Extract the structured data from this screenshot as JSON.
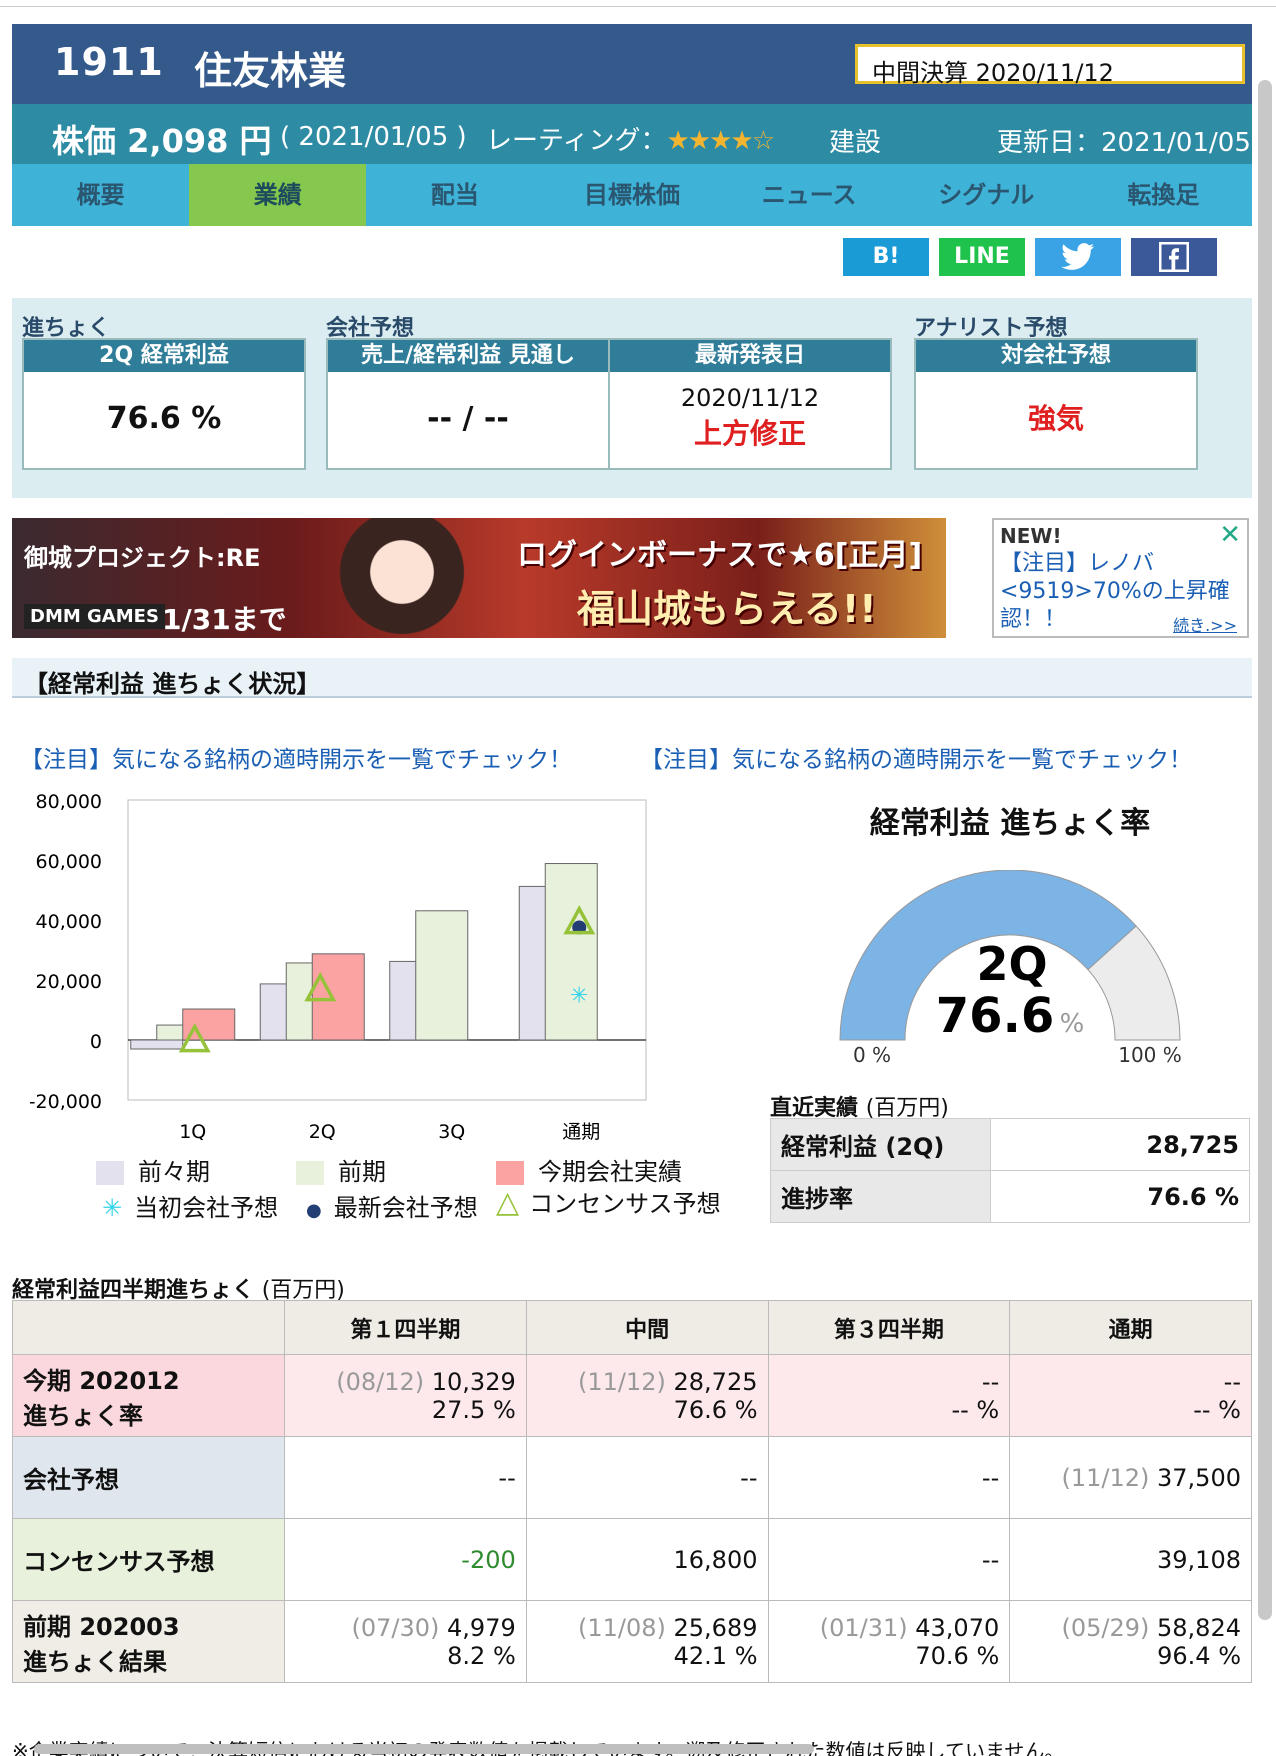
{
  "header": {
    "code": "1911",
    "name": "住友林業",
    "settlement": "中間決算 2020/11/12"
  },
  "price_bar": {
    "price_label": "株価 2,098 円",
    "price_date": "( 2021/01/05 )",
    "rating_label": "レーティング：",
    "rating_stars": "★★★★☆",
    "rating_value": 4,
    "sector": "建設",
    "updated": "更新日：2021/01/05"
  },
  "tabs": [
    {
      "label": "概要"
    },
    {
      "label": "業績",
      "active": true
    },
    {
      "label": "配当"
    },
    {
      "label": "目標株価"
    },
    {
      "label": "ニュース"
    },
    {
      "label": "シグナル"
    },
    {
      "label": "転換足"
    }
  ],
  "share": {
    "hatena": "B!",
    "line": "LINE",
    "twitter_icon": "twitter-bird",
    "facebook_icon": "facebook-f",
    "colors": {
      "hatena": "#1b9bd6",
      "line": "#1fc24a",
      "twitter": "#3aa3e6",
      "facebook": "#3b5998"
    }
  },
  "summary": {
    "progress": {
      "section": "進ちょく",
      "head": "2Q 経常利益",
      "value": "76.6 %"
    },
    "company": {
      "section": "会社予想",
      "outlook_head": "売上/経常利益 見通し",
      "outlook_value": "-- / --",
      "latest_head": "最新発表日",
      "latest_date": "2020/11/12",
      "latest_status": "上方修正"
    },
    "analyst": {
      "section": "アナリスト予想",
      "head": "対会社予想",
      "value": "強気"
    }
  },
  "banner": {
    "game_title": "御城プロジェクト:RE",
    "publisher": "DMM GAMES",
    "until": "1/31まで",
    "line1": "ログインボーナスで★6[正月]",
    "line2": "福山城もらえる!!"
  },
  "ad": {
    "new": "NEW!",
    "body": "【注目】レノバ<9519>70%の上昇確認！！",
    "more": "続き.>>",
    "close_icon": "close-x"
  },
  "section_title": "【経常利益 進ちょく状況】",
  "notice_left": "【注目】気になる銘柄の適時開示を一覧でチェック！",
  "notice_right": "【注目】気になる銘柄の適時開示を一覧でチェック！",
  "chart_data": {
    "type": "bar",
    "categories": [
      "1Q",
      "2Q",
      "3Q",
      "通期"
    ],
    "ylim": [
      -20000,
      80000
    ],
    "yticks": [
      80000,
      60000,
      40000,
      20000,
      0,
      -20000
    ],
    "ytick_labels": [
      "80,000",
      "60,000",
      "40,000",
      "20,000",
      "0",
      "-20,000"
    ],
    "series": [
      {
        "name": "前々期",
        "values": [
          -3000,
          18700,
          26200,
          51200
        ],
        "color": "#e4e1ee"
      },
      {
        "name": "前期",
        "values": [
          4979,
          25689,
          43070,
          58824
        ],
        "color": "#e8f1dc"
      },
      {
        "name": "今期会社実績",
        "values": [
          10329,
          28725,
          null,
          null
        ],
        "color": "#fba3a3"
      }
    ],
    "markers": [
      {
        "name": "当初会社予想",
        "symbol": "✳",
        "color": "#33d3ea",
        "values": [
          null,
          null,
          null,
          15500
        ]
      },
      {
        "name": "最新会社予想",
        "symbol": "●",
        "color": "#233e72",
        "values": [
          null,
          null,
          null,
          37500
        ]
      },
      {
        "name": "コンセンサス予想",
        "symbol": "△",
        "color": "#96c23a",
        "values": [
          -200,
          16800,
          null,
          39108
        ]
      }
    ]
  },
  "legend": {
    "l1": "前々期",
    "l2": "前期",
    "l3": "今期会社実績",
    "l4": "当初会社予想",
    "l5": "最新会社予想",
    "l6": "コンセンサス予想"
  },
  "gauge": {
    "title": "経常利益 進ちょく率",
    "quarter": "2Q",
    "value": "76.6",
    "value_num": 76.6,
    "unit": "%",
    "min_label": "0 %",
    "max_label": "100 %",
    "fill_color": "#7db4e6",
    "rest_color": "#ececec"
  },
  "recent": {
    "title": "直近実績",
    "unit": "(百万円)",
    "rows": [
      {
        "k": "経常利益 (2Q)",
        "v": "28,725"
      },
      {
        "k": "進捗率",
        "v": "76.6 %"
      }
    ]
  },
  "quarterly": {
    "title": "経常利益四半期進ちょく",
    "unit": "(百万円)",
    "headers": [
      "",
      "第１四半期",
      "中間",
      "第３四半期",
      "通期"
    ],
    "rows": [
      {
        "label1": "今期 202012",
        "label2": "進ちょく率",
        "bg": "#fde9ec",
        "label_bg": "#fbd8dd",
        "cells": [
          {
            "date": "(08/12)",
            "value": "10,329",
            "sub": "27.5 %"
          },
          {
            "date": "(11/12)",
            "value": "28,725",
            "sub": "76.6 %"
          },
          {
            "date": "",
            "value": "--",
            "sub": "-- %"
          },
          {
            "date": "",
            "value": "--",
            "sub": "-- %"
          }
        ]
      },
      {
        "label1": "会社予想",
        "label2": "",
        "bg": "#ffffff",
        "label_bg": "#dfe6ee",
        "cells": [
          {
            "date": "",
            "value": "--",
            "sub": ""
          },
          {
            "date": "",
            "value": "--",
            "sub": ""
          },
          {
            "date": "",
            "value": "--",
            "sub": ""
          },
          {
            "date": "(11/12)",
            "value": "37,500",
            "sub": ""
          }
        ]
      },
      {
        "label1": "コンセンサス予想",
        "label2": "",
        "bg": "#ffffff",
        "label_bg": "#e7f1db",
        "cells": [
          {
            "date": "",
            "value": "-200",
            "sub": "",
            "color": "#2e8b2e"
          },
          {
            "date": "",
            "value": "16,800",
            "sub": ""
          },
          {
            "date": "",
            "value": "--",
            "sub": ""
          },
          {
            "date": "",
            "value": "39,108",
            "sub": ""
          }
        ]
      },
      {
        "label1": "前期 202003",
        "label2": "進ちょく結果",
        "bg": "#ffffff",
        "label_bg": "#efede6",
        "cells": [
          {
            "date": "(07/30)",
            "value": "4,979",
            "sub": "8.2 %"
          },
          {
            "date": "(11/08)",
            "value": "25,689",
            "sub": "42.1 %"
          },
          {
            "date": "(01/31)",
            "value": "43,070",
            "sub": "70.6 %"
          },
          {
            "date": "(05/29)",
            "value": "58,824",
            "sub": "96.4 %"
          }
        ]
      }
    ]
  },
  "footnote": "※企業実績について：決算短信における当初の発表数値を掲載しています。遡及修正された数値は反映していません。"
}
